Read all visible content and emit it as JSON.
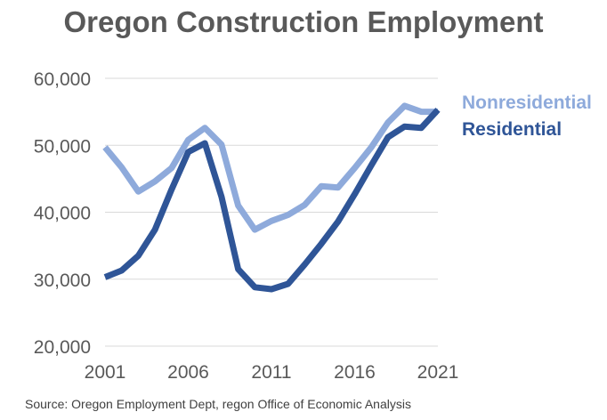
{
  "chart_data": {
    "type": "line",
    "title": "Oregon Construction Employment",
    "x": [
      2001,
      2002,
      2003,
      2004,
      2005,
      2006,
      2007,
      2008,
      2009,
      2010,
      2011,
      2012,
      2013,
      2014,
      2015,
      2016,
      2017,
      2018,
      2019,
      2020,
      2021
    ],
    "series": [
      {
        "name": "Nonresidential",
        "color": "#8eaadb",
        "values": [
          49700,
          46700,
          43100,
          44600,
          46600,
          50800,
          52600,
          50100,
          41000,
          37400,
          38700,
          39600,
          41100,
          43900,
          43700,
          46600,
          49700,
          53400,
          55900,
          55000,
          55000
        ]
      },
      {
        "name": "Residential",
        "color": "#2f5597",
        "values": [
          30300,
          31300,
          33500,
          37400,
          43400,
          49000,
          50300,
          42300,
          31500,
          28800,
          28500,
          29300,
          32200,
          35300,
          38600,
          42700,
          47000,
          51200,
          52800,
          52600,
          55300
        ]
      }
    ],
    "ylim": [
      20000,
      60000
    ],
    "xlim": [
      2001,
      2021
    ],
    "y_ticks": [
      20000,
      30000,
      40000,
      50000,
      60000
    ],
    "y_tick_labels": [
      "20,000",
      "30,000",
      "40,000",
      "50,000",
      "60,000"
    ],
    "x_ticks": [
      2001,
      2006,
      2011,
      2016,
      2021
    ],
    "x_tick_labels": [
      "2001",
      "2006",
      "2011",
      "2016",
      "2021"
    ],
    "grid": true,
    "legend_position": "top-right",
    "source": "Source: Oregon Employment Dept, regon Office of Economic Analysis"
  },
  "colors": {
    "title": "#595959",
    "grid": "#d9d9d9",
    "tick_text": "#595959"
  }
}
